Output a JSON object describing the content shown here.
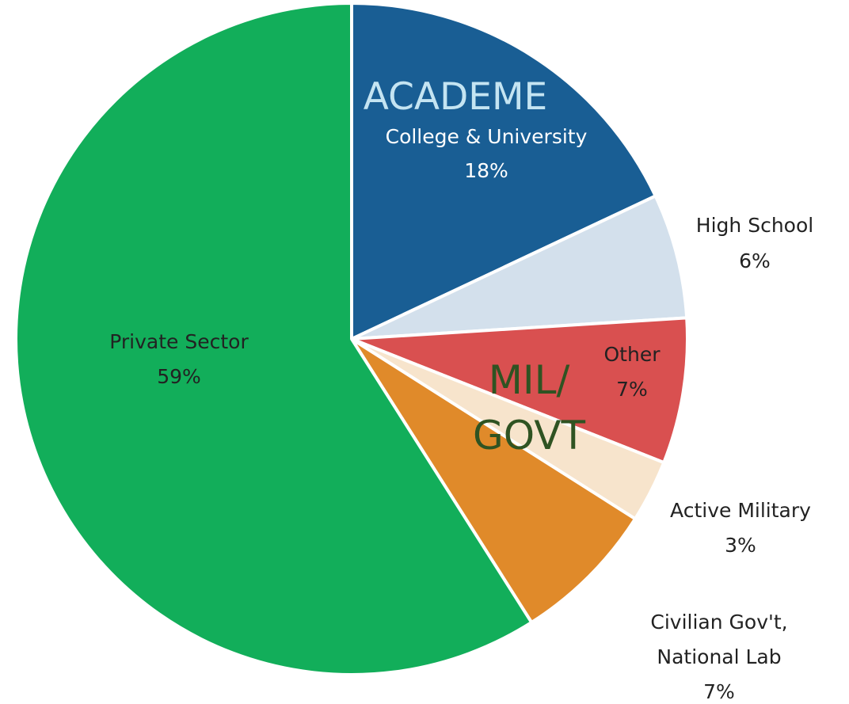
{
  "chart_data": {
    "type": "pie",
    "slices": [
      {
        "label": "College & University",
        "value": 18,
        "value_label": "18%",
        "color": "#195e94"
      },
      {
        "label": "High School",
        "value": 6,
        "value_label": "6%",
        "color": "#d3e0ec"
      },
      {
        "label": "Other",
        "value": 7,
        "value_label": "7%",
        "color": "#d95050"
      },
      {
        "label": "Active Military",
        "value": 3,
        "value_label": "3%",
        "color": "#f7e4cc"
      },
      {
        "label": "Civilian Gov't,\nNational Lab",
        "value": 7,
        "value_label": "7%",
        "color": "#e08a2a"
      },
      {
        "label": "Private Sector",
        "value": 59,
        "value_label": "59%",
        "color": "#12ae5a"
      }
    ],
    "group_annotations": [
      {
        "text": "ACADEME",
        "color": "#c4e4f2"
      },
      {
        "text": "MIL/\nGOVT",
        "color": "#2f5322"
      }
    ]
  }
}
